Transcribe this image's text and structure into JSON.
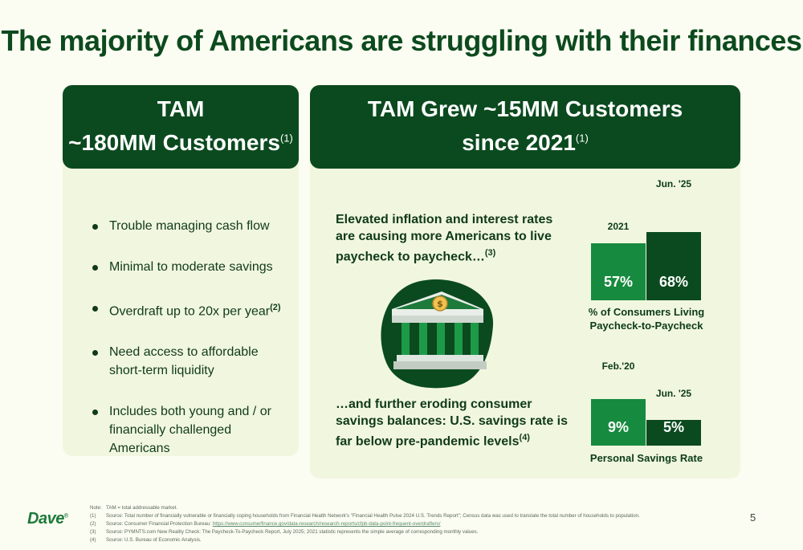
{
  "title": "The majority of Americans are struggling with their finances",
  "left": {
    "header_line1": "TAM",
    "header_line2": "~180MM  Customers",
    "header_sup": "(1)",
    "bullets": [
      {
        "text": "Trouble managing cash flow",
        "sup": ""
      },
      {
        "text": "Minimal to moderate savings",
        "sup": ""
      },
      {
        "text": "Overdraft up to 20x per year",
        "sup": "(2)"
      },
      {
        "text": "Need access to affordable short-term liquidity",
        "sup": ""
      },
      {
        "text": "Includes both young and / or financially challenged Americans",
        "sup": ""
      }
    ]
  },
  "right": {
    "header_line1": "TAM Grew ~15MM Customers",
    "header_line2": "since 2021",
    "header_sup": "(1)",
    "statement1": "Elevated inflation and interest rates are causing more Americans to live paycheck to paycheck…",
    "statement1_sup": "(3)",
    "statement2": "…and further eroding consumer savings balances: U.S. savings rate is far below pre-pandemic levels",
    "statement2_sup": "(4)",
    "bank_icon": "bank-building-dollar-icon"
  },
  "chart_data": [
    {
      "type": "bar",
      "categories": [
        "2021",
        "Jun. '25"
      ],
      "values": [
        57,
        68
      ],
      "value_labels": [
        "57%",
        "68%"
      ],
      "xlabel": "% of Consumers Living Paycheck-to-Paycheck",
      "colors": [
        "#168a3e",
        "#0b4a1f"
      ]
    },
    {
      "type": "bar",
      "categories": [
        "Feb.'20",
        "Jun. '25"
      ],
      "values": [
        9,
        5
      ],
      "value_labels": [
        "9%",
        "5%"
      ],
      "xlabel": "Personal Savings Rate",
      "colors": [
        "#168a3e",
        "#0b4a1f"
      ]
    }
  ],
  "footer": {
    "logo": "Dave",
    "logo_mark": "®",
    "page_number": "5",
    "notes": [
      {
        "key": "Note:",
        "text": "TAM = total addressable market."
      },
      {
        "key": "(1)",
        "text": "Source: Total number of financially vulnerable or financially coping households from Financial Health Network's \"Financial Health Pulse 2024 U.S. Trends Report\"; Census data was used to translate the total number of households to population."
      },
      {
        "key": "(2)",
        "text": "Source: Consumer Financial Protection Bureau: ",
        "link": "https://www.consumerfinance.gov/data-research/research-reports/cfpb-data-point-frequent-overdrafters/"
      },
      {
        "key": "(3)",
        "text": "Source: PYMNTS.com New Reality Check: The Paycheck-To-Paycheck Report, July 2025; 2021 statistic represents the simple average of corresponding monthly values."
      },
      {
        "key": "(4)",
        "text": "Source: U.S. Bureau of Economic Analysis."
      }
    ]
  },
  "colors": {
    "dark_green": "#0b4a1f",
    "mid_green": "#168a3e",
    "card_bg": "#f1f7df",
    "page_bg": "#fbfcf2"
  }
}
